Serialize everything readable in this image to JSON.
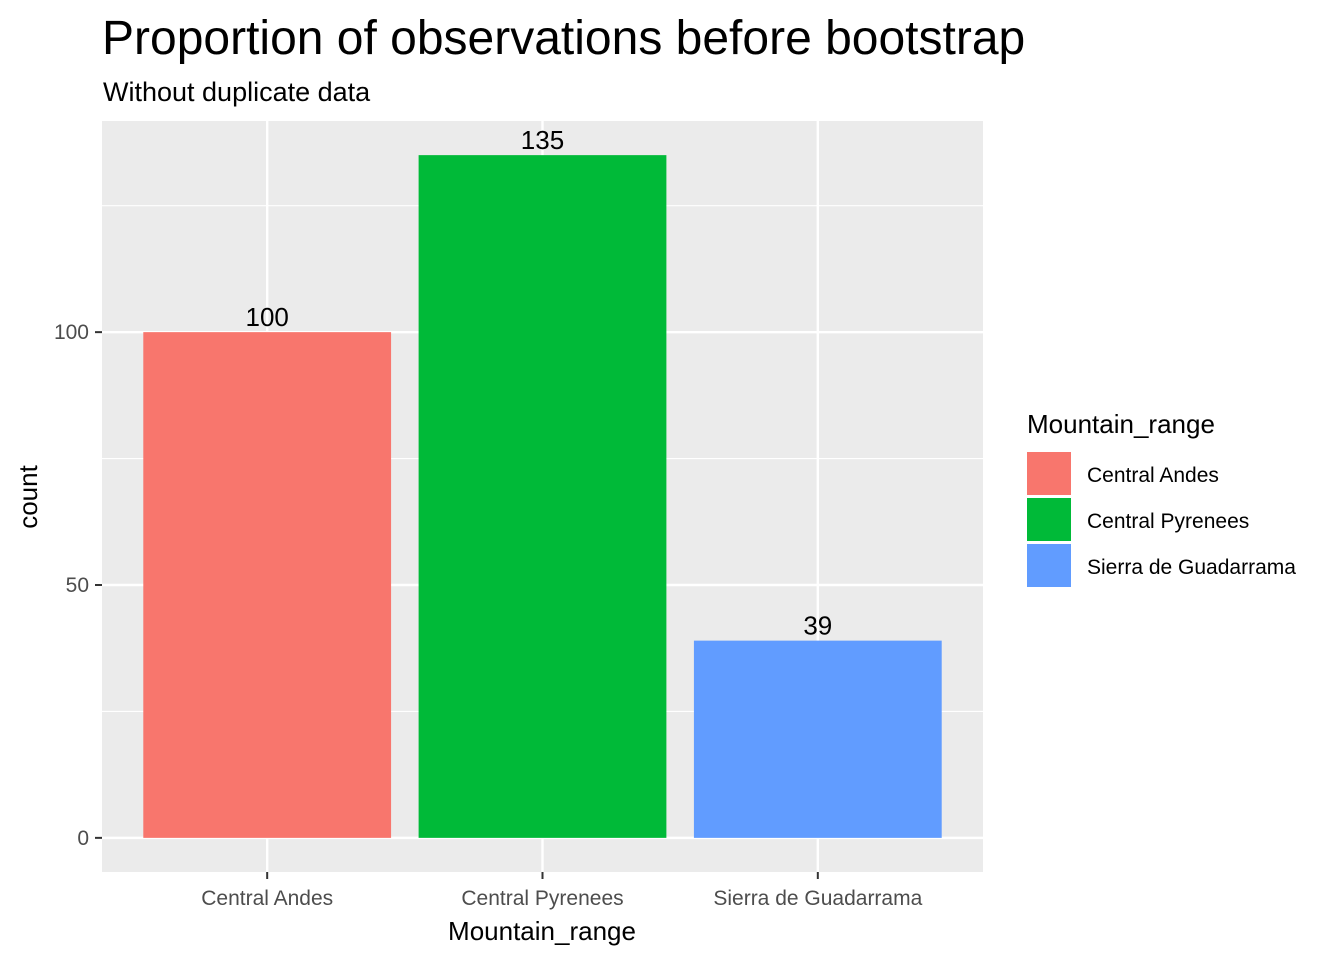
{
  "chart_data": {
    "type": "bar",
    "title": "Proportion of observations before bootstrap",
    "subtitle": "Without duplicate data",
    "xlabel": "Mountain_range",
    "ylabel": "count",
    "categories": [
      "Central Andes",
      "Central Pyrenees",
      "Sierra de Guadarrama"
    ],
    "values": [
      100,
      135,
      39
    ],
    "colors": [
      "#F8766D",
      "#00BA38",
      "#619CFF"
    ],
    "ylim": [
      -6.75,
      141.75
    ],
    "yticks": [
      0,
      50,
      100
    ],
    "grid": true,
    "legend": {
      "title": "Mountain_range",
      "placement": "right",
      "entries": [
        "Central Andes",
        "Central Pyrenees",
        "Sierra de Guadarrama"
      ]
    }
  }
}
